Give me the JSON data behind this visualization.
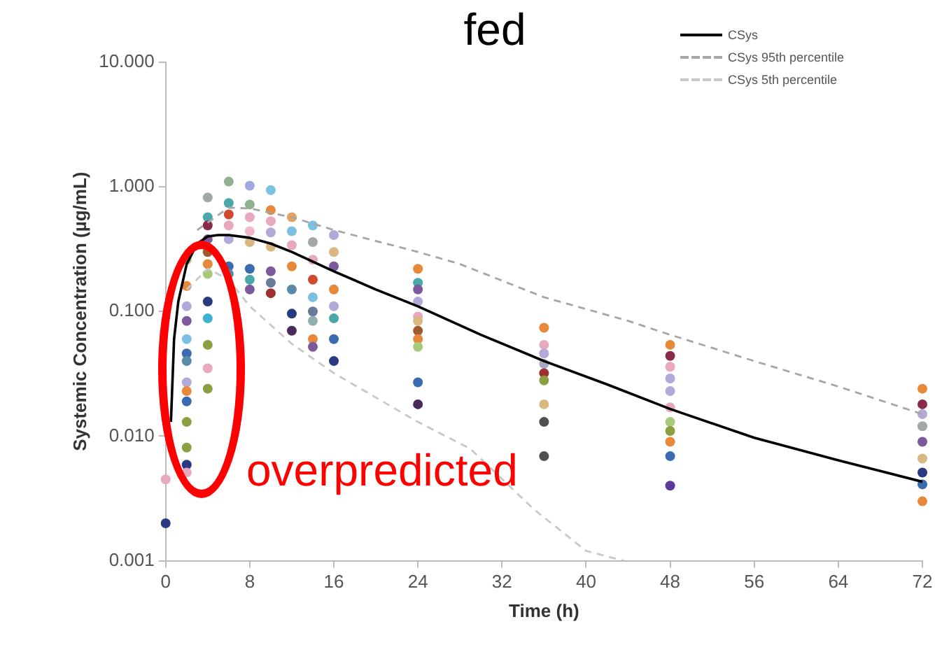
{
  "chart_data": {
    "type": "scatter",
    "title": "fed",
    "xlabel": "Time (h)",
    "ylabel": "Systemic Concentration (µg/mL)",
    "log": "y",
    "xlim": [
      0,
      72
    ],
    "xticks": [
      0,
      8,
      16,
      24,
      32,
      40,
      48,
      56,
      64,
      72
    ],
    "ylim": [
      0.001,
      10
    ],
    "yticks": [
      {
        "value": 0.001,
        "label": "0.001"
      },
      {
        "value": 0.01,
        "label": "0.010"
      },
      {
        "value": 0.1,
        "label": "0.100"
      },
      {
        "value": 1,
        "label": "1.000"
      },
      {
        "value": 10,
        "label": "10.000"
      }
    ],
    "grid": false,
    "legend": "top right",
    "annotations": [
      "overpredicted"
    ],
    "series": [
      {
        "name": "CSys",
        "type": "line",
        "color": "#000000",
        "line_style": "solid",
        "marker": "none",
        "x": [
          0.5,
          0.8,
          1.2,
          2,
          3,
          4,
          5,
          6,
          8,
          10,
          12,
          16,
          20,
          24,
          30,
          36,
          42,
          48,
          56,
          64,
          72
        ],
        "values": [
          0.013,
          0.06,
          0.12,
          0.24,
          0.35,
          0.4,
          0.41,
          0.41,
          0.39,
          0.35,
          0.3,
          0.21,
          0.15,
          0.11,
          0.065,
          0.04,
          0.026,
          0.0165,
          0.0097,
          0.0064,
          0.0043
        ]
      },
      {
        "name": "CSys 95th percentile",
        "type": "line",
        "color": "#a6a6a6",
        "line_style": "dashed",
        "marker": "none",
        "x": [
          3,
          6,
          8,
          12,
          16,
          24,
          28,
          36,
          44,
          48,
          56,
          64,
          72
        ],
        "values": [
          0.45,
          0.68,
          0.67,
          0.57,
          0.45,
          0.3,
          0.24,
          0.13,
          0.084,
          0.065,
          0.04,
          0.025,
          0.015
        ]
      },
      {
        "name": "CSys 5th percentile",
        "type": "line",
        "color": "#c8c8c8",
        "line_style": "dashed",
        "marker": "none",
        "x": [
          2,
          4,
          6,
          8,
          12,
          16,
          24,
          29,
          35,
          40,
          43.6
        ],
        "values": [
          0.15,
          0.22,
          0.18,
          0.11,
          0.055,
          0.032,
          0.013,
          0.0079,
          0.0026,
          0.0012,
          0.001
        ]
      },
      {
        "marker": "circle",
        "x": [
          0,
          0,
          2,
          2,
          2,
          2,
          2,
          2,
          2,
          2,
          2,
          2,
          2,
          2,
          2,
          2,
          4,
          4,
          4,
          4,
          4,
          4,
          4,
          4,
          4,
          4,
          4,
          4,
          6,
          6,
          6,
          6,
          6,
          6,
          6,
          8,
          8,
          8,
          8,
          8,
          8,
          8,
          8,
          10,
          10,
          10,
          10,
          10,
          10,
          10,
          10,
          12,
          12,
          12,
          12,
          12,
          12,
          12,
          14,
          14,
          14,
          14,
          14,
          14,
          14,
          14,
          14,
          16,
          16,
          16,
          16,
          16,
          16,
          16,
          16,
          24,
          24,
          24,
          24,
          24,
          24,
          24,
          24,
          24,
          24,
          24,
          36,
          36,
          36,
          36,
          36,
          36,
          36,
          36,
          36,
          48,
          48,
          48,
          48,
          48,
          48,
          48,
          48,
          48,
          48,
          48,
          72,
          72,
          72,
          72,
          72,
          72,
          72,
          72,
          72
        ],
        "values": [
          0.002,
          0.0045,
          0.26,
          0.16,
          0.11,
          0.084,
          0.06,
          0.046,
          0.04,
          0.027,
          0.023,
          0.019,
          0.013,
          0.0081,
          0.0059,
          0.0051,
          0.82,
          0.57,
          0.49,
          0.38,
          0.3,
          0.24,
          0.2,
          0.12,
          0.088,
          0.054,
          0.035,
          0.024,
          1.1,
          0.74,
          0.6,
          0.49,
          0.38,
          0.23,
          0.2,
          1.02,
          0.72,
          0.57,
          0.44,
          0.36,
          0.22,
          0.18,
          0.15,
          0.94,
          0.65,
          0.53,
          0.43,
          0.33,
          0.21,
          0.17,
          0.14,
          0.57,
          0.44,
          0.34,
          0.23,
          0.15,
          0.096,
          0.07,
          0.49,
          0.36,
          0.26,
          0.18,
          0.13,
          0.1,
          0.084,
          0.06,
          0.052,
          0.41,
          0.3,
          0.23,
          0.15,
          0.11,
          0.088,
          0.06,
          0.04,
          0.22,
          0.17,
          0.15,
          0.12,
          0.091,
          0.084,
          0.07,
          0.06,
          0.052,
          0.027,
          0.018,
          0.074,
          0.054,
          0.046,
          0.038,
          0.032,
          0.028,
          0.018,
          0.013,
          0.0069,
          0.054,
          0.044,
          0.036,
          0.029,
          0.023,
          0.017,
          0.013,
          0.011,
          0.009,
          0.0069,
          0.004,
          0.024,
          0.018,
          0.015,
          0.012,
          0.009,
          0.0066,
          0.0051,
          0.0041,
          0.003
        ],
        "colors": [
          "#2a3a80",
          "#e8a8c0",
          "#a8c87a",
          "#e8883a",
          "#b4a8d8",
          "#7a5a9a",
          "#7ac0e0",
          "#3a6ab0",
          "#5a8aa8",
          "#b4a8d8",
          "#e8883a",
          "#3a6ab0",
          "#8aa040",
          "#8aa040",
          "#2a3a80",
          "#e8a8c0",
          "#a0a8a8",
          "#4aa8a8",
          "#8a2a4a",
          "#7a5a9a",
          "#a05a30",
          "#e8883a",
          "#a8c87a",
          "#2a3a80",
          "#40b0d0",
          "#8aa040",
          "#e8a8c0",
          "#8aa040",
          "#90b090",
          "#4aa8a8",
          "#d04a30",
          "#e8a8c0",
          "#b4a8d8",
          "#3a6ab0",
          "#5a8aa8",
          "#a0a8e0",
          "#90b090",
          "#e8a8c0",
          "#f0b8c8",
          "#d8b880",
          "#3a6ab0",
          "#4aa8a8",
          "#7a5a9a",
          "#7ac0e0",
          "#e8883a",
          "#e8a8c0",
          "#b4a8d8",
          "#d8b880",
          "#7a5a9a",
          "#6a7a9a",
          "#a03030",
          "#e8a060",
          "#7ac0e0",
          "#e8a8c0",
          "#e8883a",
          "#5a8aa8",
          "#2a3a80",
          "#4a2a5a",
          "#7ac0e0",
          "#a0a8a8",
          "#e8a8c0",
          "#d04a30",
          "#7ac0e0",
          "#6a7a9a",
          "#90b0b0",
          "#e8883a",
          "#7a5a9a",
          "#b4a8d8",
          "#d8b880",
          "#7a5a9a",
          "#e8883a",
          "#b4a8d8",
          "#4aa8a8",
          "#3a6ab0",
          "#2a3a80",
          "#e8883a",
          "#4aa8a8",
          "#7a5a9a",
          "#b4a8d8",
          "#e8a8c0",
          "#d8b880",
          "#a05a30",
          "#e8883a",
          "#a8c87a",
          "#3a6ab0",
          "#4a2a5a",
          "#e8883a",
          "#e8a8c0",
          "#b4a8d8",
          "#a8a8c0",
          "#a03030",
          "#8aa040",
          "#d8b880",
          "#505050",
          "#505050",
          "#e8883a",
          "#8a2a4a",
          "#e8a8c0",
          "#b4a8d8",
          "#b4a8d8",
          "#e8a8c0",
          "#a8c87a",
          "#8aa040",
          "#e8883a",
          "#3a6ab0",
          "#5a3a9a",
          "#e8883a",
          "#8a2a4a",
          "#b4a8d8",
          "#a0a8a8",
          "#7a5a9a",
          "#d8b880",
          "#2a3a80",
          "#3a6ab0",
          "#e8883a"
        ]
      }
    ]
  }
}
